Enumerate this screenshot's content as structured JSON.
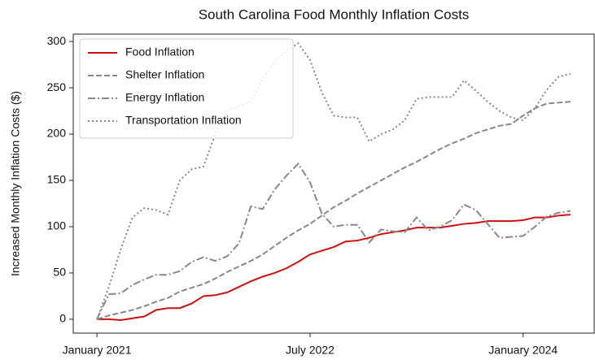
{
  "chart_data": {
    "type": "line",
    "title": "South Carolina Food Monthly Inflation Costs",
    "y_label": "Increased Monthly Inflation Costs ($)",
    "x": [
      "2021-01",
      "2021-02",
      "2021-03",
      "2021-04",
      "2021-05",
      "2021-06",
      "2021-07",
      "2021-08",
      "2021-09",
      "2021-10",
      "2021-11",
      "2021-12",
      "2022-01",
      "2022-02",
      "2022-03",
      "2022-04",
      "2022-05",
      "2022-06",
      "2022-07",
      "2022-08",
      "2022-09",
      "2022-10",
      "2022-11",
      "2022-12",
      "2023-01",
      "2023-02",
      "2023-03",
      "2023-04",
      "2023-05",
      "2023-06",
      "2023-07",
      "2023-08",
      "2023-09",
      "2023-10",
      "2023-11",
      "2023-12",
      "2024-01",
      "2024-02",
      "2024-03",
      "2024-04",
      "2024-05"
    ],
    "series": [
      {
        "name": "Food Inflation",
        "color": "#cc1111",
        "dash": "solid",
        "values": [
          0,
          0,
          -1,
          1,
          3,
          10,
          12,
          12,
          17,
          25,
          26,
          29,
          35,
          41,
          46,
          50,
          55,
          62,
          70,
          74,
          78,
          84,
          85,
          88,
          92,
          94,
          96,
          99,
          99,
          99,
          101,
          103,
          104,
          106,
          106,
          106,
          107,
          110,
          110,
          112,
          113
        ]
      },
      {
        "name": "Shelter Inflation",
        "color": "#888888",
        "dash": "dashed",
        "values": [
          0,
          4,
          7,
          10,
          14,
          19,
          23,
          30,
          34,
          38,
          44,
          51,
          57,
          63,
          70,
          79,
          88,
          96,
          103,
          112,
          121,
          128,
          136,
          143,
          150,
          157,
          164,
          170,
          177,
          184,
          190,
          195,
          201,
          205,
          209,
          211,
          220,
          228,
          233,
          234,
          235
        ]
      },
      {
        "name": "Energy Inflation",
        "color": "#888888",
        "dash": "dashdot",
        "values": [
          0,
          27,
          28,
          37,
          43,
          48,
          48,
          52,
          62,
          67,
          63,
          68,
          82,
          122,
          119,
          140,
          155,
          168,
          148,
          114,
          100,
          102,
          102,
          83,
          97,
          95,
          94,
          110,
          96,
          100,
          107,
          124,
          118,
          103,
          88,
          89,
          90,
          100,
          111,
          115,
          117
        ]
      },
      {
        "name": "Transportation Inflation",
        "color": "#888888",
        "dash": "dotted",
        "values": [
          0,
          35,
          75,
          110,
          120,
          118,
          113,
          150,
          162,
          165,
          200,
          225,
          230,
          235,
          260,
          278,
          290,
          298,
          280,
          245,
          220,
          218,
          218,
          192,
          200,
          205,
          215,
          238,
          240,
          240,
          240,
          258,
          247,
          235,
          225,
          218,
          215,
          228,
          248,
          262,
          265
        ]
      }
    ],
    "xlim": [
      "2020-11",
      "2024-07"
    ],
    "xticks": [
      {
        "value": "2021-01",
        "label": "January 2021"
      },
      {
        "value": "2022-07",
        "label": "July 2022"
      },
      {
        "value": "2024-01",
        "label": "January 2024"
      }
    ],
    "ylim": [
      -15,
      308
    ],
    "yticks": [
      0,
      50,
      100,
      150,
      200,
      250,
      300
    ],
    "grid": false,
    "legend": "upper left"
  }
}
